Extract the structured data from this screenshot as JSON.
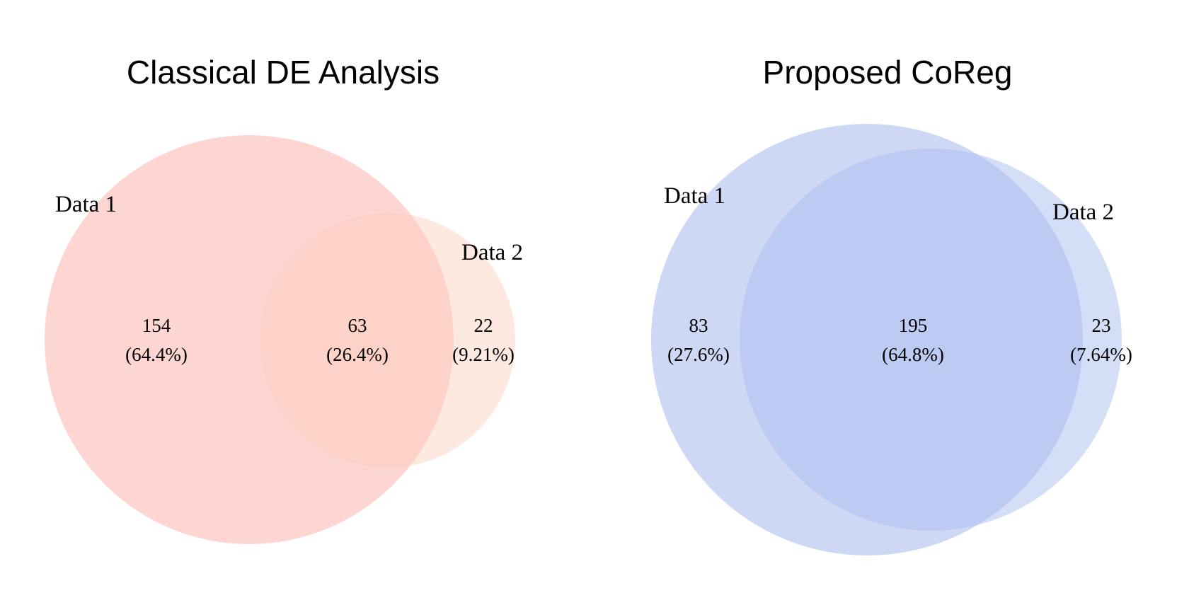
{
  "diagrams": [
    {
      "title": "Classical DE Analysis",
      "colors": {
        "set1": "#FBA59A",
        "set2": "#FCCFBD",
        "set1_opacity": 0.45,
        "set2_opacity": 0.45
      },
      "sets": [
        {
          "label": "Data 1"
        },
        {
          "label": "Data 2"
        }
      ],
      "regions": [
        {
          "name": "data1-only",
          "count": "154",
          "percent": "(64.4%)"
        },
        {
          "name": "overlap",
          "count": "63",
          "percent": "(26.4%)"
        },
        {
          "name": "data2-only",
          "count": "22",
          "percent": "(9.21%)"
        }
      ]
    },
    {
      "title": "Proposed CoReg",
      "colors": {
        "set1": "#9DB0EA",
        "set2": "#A9C0F0",
        "set1_opacity": 0.5,
        "set2_opacity": 0.5
      },
      "sets": [
        {
          "label": "Data 1"
        },
        {
          "label": "Data 2"
        }
      ],
      "regions": [
        {
          "name": "data1-only",
          "count": "83",
          "percent": "(27.6%)"
        },
        {
          "name": "overlap",
          "count": "195",
          "percent": "(64.8%)"
        },
        {
          "name": "data2-only",
          "count": "23",
          "percent": "(7.64%)"
        }
      ]
    }
  ]
}
